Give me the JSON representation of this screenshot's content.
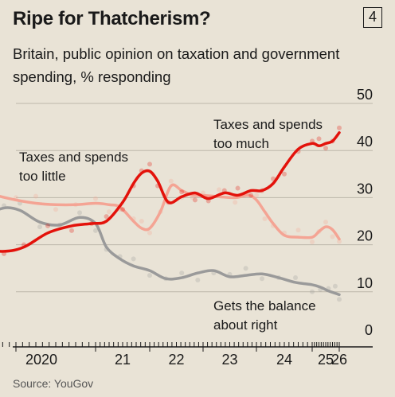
{
  "header": {
    "title": "Ripe for Thatcherism?",
    "badge": "4",
    "subtitle": "Britain, public opinion on taxation and government spending, % responding"
  },
  "source": "Source: YouGov",
  "colors": {
    "background": "#e9e3d6",
    "too_much": "#e3120b",
    "too_little": "#f4a494",
    "balance": "#9a9a9a",
    "grid": "#bdb7aa"
  },
  "chart_data": {
    "type": "line",
    "title": "Ripe for Thatcherism?",
    "subtitle": "Britain, public opinion on taxation and government spending, % responding",
    "x_ticks": [
      "2020",
      "21",
      "22",
      "23",
      "24",
      "25",
      "26"
    ],
    "x_tick_years": [
      2020,
      2021,
      2022,
      2023,
      2024,
      2025,
      2026
    ],
    "xlim": [
      2019.5,
      2026.12
    ],
    "ylim": [
      0,
      50
    ],
    "y_ticks": [
      0,
      10,
      20,
      30,
      40,
      50
    ],
    "grid": true,
    "series": [
      {
        "name": "Taxes and spends too much",
        "label_lines": [
          "Taxes and spends",
          "too much"
        ],
        "key": "too_much",
        "x": [
          2019.5,
          2019.85,
          2020.1,
          2020.4,
          2020.7,
          2020.95,
          2021.2,
          2021.5,
          2021.7,
          2021.85,
          2022.0,
          2022.15,
          2022.35,
          2022.6,
          2022.85,
          2023.1,
          2023.4,
          2023.65,
          2023.9,
          2024.1,
          2024.3,
          2024.5,
          2024.75,
          2025.0,
          2025.25,
          2025.5,
          2025.75,
          2026.0
        ],
        "y": [
          19,
          18.6,
          19.5,
          22.5,
          24,
          24.5,
          25,
          29,
          33,
          35.2,
          35.6,
          33.5,
          29,
          30.2,
          31,
          29.8,
          31,
          30.5,
          31.5,
          31.5,
          33,
          36.5,
          40.3,
          41.5,
          41,
          41.5,
          42,
          43.8
        ]
      },
      {
        "name": "Taxes and spends too little",
        "label_lines": [
          "Taxes and spends",
          "too little"
        ],
        "key": "too_little",
        "x": [
          2019.5,
          2019.75,
          2020.0,
          2020.25,
          2020.5,
          2020.75,
          2021.0,
          2021.25,
          2021.45,
          2021.7,
          2021.85,
          2022.0,
          2022.2,
          2022.4,
          2022.6,
          2022.8,
          2023.0,
          2023.3,
          2023.6,
          2023.85,
          2024.0,
          2024.15,
          2024.3,
          2024.5,
          2024.75,
          2025.0,
          2025.25,
          2025.5,
          2025.75,
          2026.0
        ],
        "y": [
          32,
          30.5,
          29.5,
          28.8,
          28.5,
          28.5,
          28.8,
          28.5,
          28,
          25,
          23.5,
          23.5,
          27,
          32.5,
          31.5,
          30.5,
          30.5,
          30.2,
          30,
          30.5,
          29.5,
          27,
          24.5,
          22,
          21.6,
          21.6,
          22.8,
          23.8,
          23.2,
          21.2
        ]
      },
      {
        "name": "Gets the balance about right",
        "label_lines": [
          "Gets the balance",
          "about right"
        ],
        "key": "balance",
        "x": [
          2019.5,
          2019.65,
          2019.85,
          2020.05,
          2020.3,
          2020.55,
          2020.8,
          2021.0,
          2021.2,
          2021.45,
          2021.7,
          2022.0,
          2022.3,
          2022.6,
          2022.9,
          2023.2,
          2023.5,
          2023.8,
          2024.1,
          2024.4,
          2024.7,
          2025.0,
          2025.3,
          2025.6,
          2025.85,
          2026.0
        ],
        "y": [
          21.5,
          26,
          27.8,
          27.3,
          24.8,
          24.2,
          25.8,
          24.5,
          19.5,
          17,
          15.5,
          14.5,
          12.8,
          13,
          14,
          14.5,
          13.2,
          13.5,
          13.8,
          13,
          12,
          11.5,
          11,
          10.2,
          9.7,
          9.4
        ]
      }
    ]
  }
}
